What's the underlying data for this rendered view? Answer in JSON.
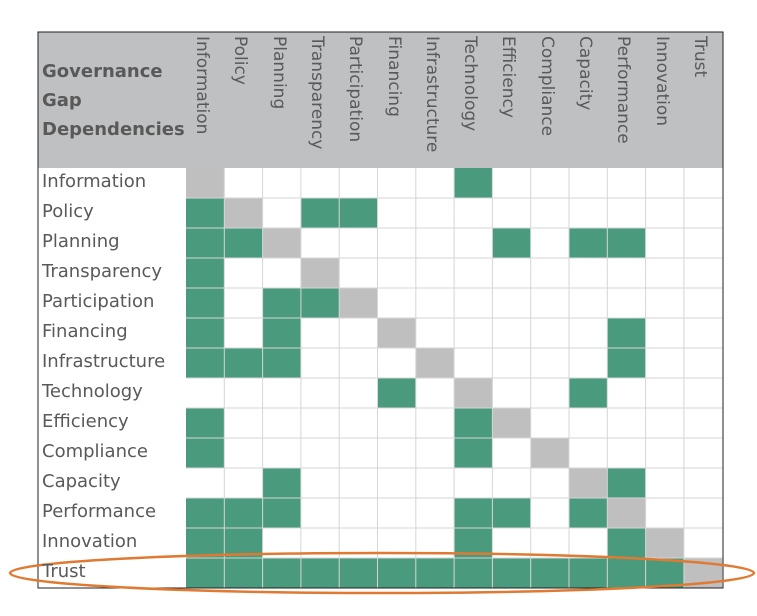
{
  "chart_data": {
    "type": "heatmap",
    "title_lines": [
      "Governance",
      "Gap",
      "Dependencies"
    ],
    "rows": [
      "Information",
      "Policy",
      "Planning",
      "Transparency",
      "Participation",
      "Financing",
      "Infrastructure",
      "Technology",
      "Efficiency",
      "Compliance",
      "Capacity",
      "Performance",
      "Innovation",
      "Trust"
    ],
    "columns": [
      "Information",
      "Policy",
      "Planning",
      "Transparency",
      "Participation",
      "Financing",
      "Infrastructure",
      "Technology",
      "Efficiency",
      "Compliance",
      "Capacity",
      "Performance",
      "Innovation",
      "Trust"
    ],
    "matrix": [
      [
        0,
        0,
        0,
        0,
        0,
        0,
        0,
        1,
        0,
        0,
        0,
        0,
        0,
        0
      ],
      [
        1,
        0,
        0,
        1,
        1,
        0,
        0,
        0,
        0,
        0,
        0,
        0,
        0,
        0
      ],
      [
        1,
        1,
        0,
        0,
        0,
        0,
        0,
        0,
        1,
        0,
        1,
        1,
        0,
        0
      ],
      [
        1,
        0,
        0,
        0,
        0,
        0,
        0,
        0,
        0,
        0,
        0,
        0,
        0,
        0
      ],
      [
        1,
        0,
        1,
        1,
        0,
        0,
        0,
        0,
        0,
        0,
        0,
        0,
        0,
        0
      ],
      [
        1,
        0,
        1,
        0,
        0,
        0,
        0,
        0,
        0,
        0,
        0,
        1,
        0,
        0
      ],
      [
        1,
        1,
        1,
        0,
        0,
        0,
        0,
        0,
        0,
        0,
        0,
        1,
        0,
        0
      ],
      [
        0,
        0,
        0,
        0,
        0,
        1,
        0,
        0,
        0,
        0,
        1,
        0,
        0,
        0
      ],
      [
        1,
        0,
        0,
        0,
        0,
        0,
        0,
        1,
        0,
        0,
        0,
        0,
        0,
        0
      ],
      [
        1,
        0,
        0,
        0,
        0,
        0,
        0,
        1,
        0,
        0,
        0,
        0,
        0,
        0
      ],
      [
        0,
        0,
        1,
        0,
        0,
        0,
        0,
        0,
        0,
        0,
        0,
        1,
        0,
        0
      ],
      [
        1,
        1,
        1,
        0,
        0,
        0,
        0,
        1,
        1,
        0,
        1,
        0,
        0,
        0
      ],
      [
        1,
        1,
        0,
        0,
        0,
        0,
        0,
        1,
        0,
        0,
        0,
        1,
        0,
        0
      ],
      [
        1,
        1,
        1,
        1,
        1,
        1,
        1,
        1,
        1,
        1,
        1,
        1,
        1,
        0
      ]
    ],
    "highlight_row": "Trust",
    "colors": {
      "dependency": "#4a9a7e",
      "diagonal": "#bfbfbf",
      "header_bg": "#bfc0c2",
      "empty": "#ffffff",
      "grid": "#d6d6d6",
      "highlight": "#e07a32"
    }
  }
}
